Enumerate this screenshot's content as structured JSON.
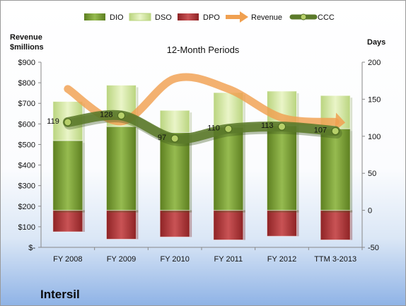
{
  "chart_data": {
    "type": "bar",
    "title": "12-Month Periods",
    "company": "Intersil",
    "y_left_label": [
      "Revenue",
      "$millions"
    ],
    "y_right_label": "Days",
    "categories": [
      "FY 2008",
      "FY 2009",
      "FY 2010",
      "FY 2011",
      "FY 2012",
      "TTM 3-2013"
    ],
    "left_axis": {
      "ticks": [
        "$-",
        "$100",
        "$200",
        "$300",
        "$400",
        "$500",
        "$600",
        "$700",
        "$800",
        "$900"
      ],
      "ylim": [
        0,
        900
      ]
    },
    "right_axis": {
      "ticks": [
        "-50",
        "0",
        "50",
        "100",
        "150",
        "200"
      ],
      "ylim": [
        -50,
        200
      ]
    },
    "series": [
      {
        "name": "DIO",
        "axis": "days",
        "type": "bar",
        "values": [
          94,
          113,
          105,
          112,
          114,
          110
        ]
      },
      {
        "name": "DSO",
        "axis": "days",
        "type": "bar",
        "values": [
          53,
          56,
          30,
          47,
          47,
          45
        ]
      },
      {
        "name": "DPO",
        "axis": "days",
        "type": "bar",
        "values": [
          -29,
          -39,
          -36,
          -40,
          -35,
          -40
        ]
      },
      {
        "name": "Revenue",
        "axis": "revenue",
        "type": "line",
        "values": [
          770,
          612,
          820,
          770,
          630,
          610
        ]
      },
      {
        "name": "CCC",
        "axis": "days",
        "type": "line",
        "values": [
          119,
          128,
          97,
          110,
          113,
          107
        ],
        "data_labels": [
          "119",
          "128",
          "97",
          "110",
          "113",
          "107"
        ]
      }
    ],
    "legend": {
      "position": "top",
      "entries": [
        "DIO",
        "DSO",
        "DPO",
        "Revenue",
        "CCC"
      ]
    },
    "grid": false,
    "colors": {
      "DIO": "#7ea23a",
      "DSO": "#d7eaa4",
      "DPO": "#b23c3e",
      "Revenue": "#f0a050",
      "CCC": "#5b7a2a"
    }
  }
}
